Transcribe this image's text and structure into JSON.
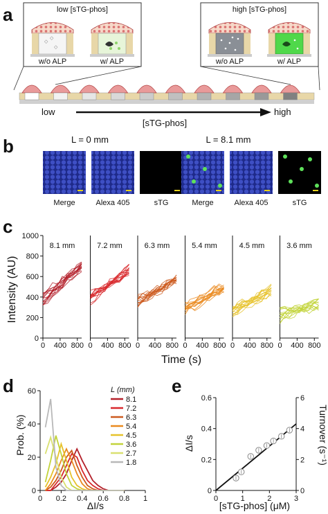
{
  "panel_a": {
    "label": "a",
    "low_title": "low [sTG-phos]",
    "high_title": "high [sTG-phos]",
    "captions": [
      "w/o ALP",
      "w/ ALP",
      "w/o ALP",
      "w/ ALP"
    ],
    "gradient_low": "low",
    "gradient_high": "high",
    "gradient_label": "[sTG-phos]",
    "well_shades": [
      "#ffffff",
      "#f2f2f2",
      "#e6e6e6",
      "#d9d9d9",
      "#cccccc",
      "#c0c0c0",
      "#b3b3b3",
      "#a6a6a6",
      "#999999",
      "#808080"
    ]
  },
  "panel_b": {
    "label": "b",
    "left_title": "L = 0 mm",
    "right_title": "L = 8.1 mm",
    "captions": [
      "Merge",
      "Alexa 405",
      "sTG",
      "Merge",
      "Alexa 405",
      "sTG"
    ],
    "caption_colors": [
      "#111111",
      "#3a4db0",
      "#2a9a2a",
      "#111111",
      "#3a4db0",
      "#2a9a2a"
    ]
  },
  "panel_c": {
    "label": "c",
    "ylabel": "Intensity (AU)",
    "xlabel": "Time (s)",
    "yticks": [
      "0",
      "200",
      "400",
      "600",
      "800",
      "1000"
    ],
    "xticks": [
      "0",
      "400",
      "800"
    ],
    "panels": [
      {
        "title": "8.1 mm",
        "color": "#b3202a"
      },
      {
        "title": "7.2 mm",
        "color": "#d8282c"
      },
      {
        "title": "6.3 mm",
        "color": "#cc5a1e"
      },
      {
        "title": "5.4 mm",
        "color": "#ea8a1e"
      },
      {
        "title": "4.5 mm",
        "color": "#e6c22a"
      },
      {
        "title": "3.6 mm",
        "color": "#c2d33a"
      }
    ]
  },
  "panel_d": {
    "label": "d",
    "ylabel": "Prob. (%)",
    "xlabel": "ΔI/s",
    "legend_title": "L (mm)",
    "yticks": [
      "0",
      "20",
      "40",
      "60"
    ],
    "xticks": [
      "0",
      "0.2",
      "0.4",
      "0.6",
      "0.8",
      "1"
    ],
    "chart_data": {
      "type": "line",
      "x": [
        0.05,
        0.1,
        0.15,
        0.2,
        0.25,
        0.3,
        0.35,
        0.4,
        0.45,
        0.5,
        0.55,
        0.6,
        0.65,
        0.7,
        0.75,
        0.8
      ],
      "ylim": [
        0,
        60
      ],
      "xlim": [
        0,
        1
      ],
      "series": [
        {
          "name": "8.1",
          "color": "#b3202a",
          "values": [
            0,
            0,
            2,
            5,
            10,
            18,
            25,
            18,
            12,
            6,
            3,
            1,
            0,
            0,
            0,
            0
          ]
        },
        {
          "name": "7.2",
          "color": "#d8282c",
          "values": [
            0,
            0,
            4,
            8,
            15,
            22,
            20,
            12,
            6,
            3,
            1,
            0,
            0,
            0,
            0,
            0
          ]
        },
        {
          "name": "6.3",
          "color": "#cc5a1e",
          "values": [
            0,
            2,
            6,
            12,
            20,
            24,
            15,
            8,
            3,
            1,
            0,
            0,
            0,
            0,
            0,
            0
          ]
        },
        {
          "name": "5.4",
          "color": "#ea8a1e",
          "values": [
            0,
            4,
            10,
            18,
            25,
            18,
            10,
            4,
            1,
            0,
            0,
            0,
            0,
            0,
            0,
            0
          ]
        },
        {
          "name": "4.5",
          "color": "#e6c22a",
          "values": [
            2,
            8,
            16,
            28,
            18,
            8,
            3,
            1,
            0,
            0,
            0,
            0,
            0,
            0,
            0,
            0
          ]
        },
        {
          "name": "3.6",
          "color": "#c2d33a",
          "values": [
            5,
            18,
            33,
            22,
            10,
            3,
            1,
            0,
            0,
            0,
            0,
            0,
            0,
            0,
            0,
            0
          ]
        },
        {
          "name": "2.7",
          "color": "#d9e070",
          "values": [
            22,
            32,
            20,
            8,
            2,
            0,
            0,
            0,
            0,
            0,
            0,
            0,
            0,
            0,
            0,
            0
          ]
        },
        {
          "name": "1.8",
          "color": "#b8b8b8",
          "values": [
            38,
            55,
            14,
            3,
            0,
            0,
            0,
            0,
            0,
            0,
            0,
            0,
            0,
            0,
            0,
            0
          ]
        }
      ]
    }
  },
  "panel_e": {
    "label": "e",
    "ylabel": "ΔI/s",
    "ylabel_right": "Turnover (s⁻¹)",
    "xlabel": "[sTG-phos] (μM)",
    "yticks": [
      "0",
      "0.2",
      "0.4",
      "0.6"
    ],
    "yticks_right": [
      "0",
      "2",
      "4",
      "6"
    ],
    "xticks": [
      "0",
      "1",
      "2",
      "3"
    ],
    "chart_data": {
      "type": "scatter",
      "x": [
        0.75,
        0.95,
        1.3,
        1.6,
        1.9,
        2.15,
        2.45,
        2.75
      ],
      "y": [
        0.08,
        0.12,
        0.22,
        0.26,
        0.29,
        0.32,
        0.35,
        0.39
      ],
      "xlim": [
        0,
        3
      ],
      "ylim": [
        0,
        0.6
      ],
      "fit_line": {
        "x": [
          0,
          3
        ],
        "y": [
          0,
          0.43
        ]
      }
    }
  }
}
